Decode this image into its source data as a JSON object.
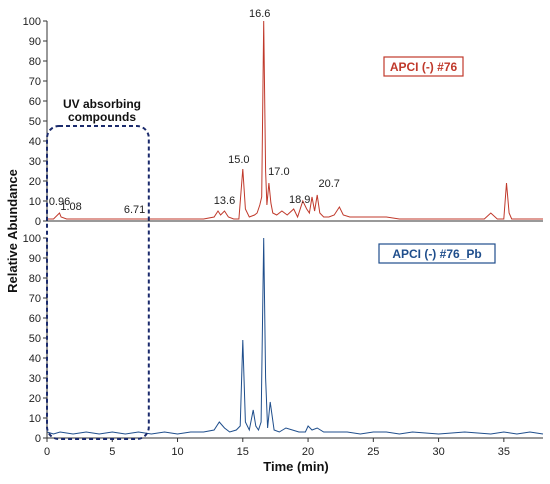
{
  "chart_data": [
    {
      "type": "line",
      "panel": "top",
      "title": "",
      "xlabel": "Time (min)",
      "ylabel": "Relative Abundance",
      "xlim": [
        0,
        38
      ],
      "ylim": [
        0,
        100
      ],
      "x_ticks": [
        "0",
        "5",
        "10",
        "15",
        "20",
        "25",
        "30",
        "35"
      ],
      "y_ticks": [
        "0",
        "10",
        "20",
        "30",
        "40",
        "50",
        "60",
        "70",
        "80",
        "90",
        "100"
      ],
      "legend": "APCI (-) #76",
      "color": "#c0392b",
      "legend_position": "top-right",
      "peaks": [
        {
          "x": 0.96,
          "y": 4,
          "label": "0.96"
        },
        {
          "x": 1.08,
          "y": 2,
          "label": "1.08"
        },
        {
          "x": 6.71,
          "y": 1,
          "label": "6.71"
        },
        {
          "x": 13.6,
          "y": 5,
          "label": "13.6"
        },
        {
          "x": 15.0,
          "y": 26,
          "label": "15.0"
        },
        {
          "x": 16.6,
          "y": 100,
          "label": "16.6"
        },
        {
          "x": 17.0,
          "y": 19,
          "label": "17.0"
        },
        {
          "x": 18.9,
          "y": 6,
          "label": "18.9"
        },
        {
          "x": 20.7,
          "y": 13,
          "label": "20.7"
        }
      ],
      "series": [
        {
          "x": [
            0,
            0.5,
            0.96,
            1.08,
            1.5,
            3,
            5,
            6.71,
            8,
            10,
            12,
            12.8,
            13.1,
            13.3,
            13.6,
            13.9,
            14.3,
            14.7,
            15.0,
            15.2,
            15.5,
            15.9,
            16.1,
            16.3,
            16.45,
            16.6,
            16.75,
            16.85,
            17.0,
            17.15,
            17.3,
            17.6,
            18.0,
            18.4,
            18.9,
            19.2,
            19.6,
            19.9,
            20.1,
            20.3,
            20.5,
            20.7,
            20.9,
            21.2,
            21.6,
            22.0,
            22.4,
            22.7,
            23.2,
            24.0,
            25.0,
            26.0,
            27.0,
            28.0,
            30.0,
            32.0,
            33.5,
            34.0,
            34.5,
            35.0,
            35.2,
            35.4,
            35.6,
            36.0,
            37.0,
            38.0
          ],
          "y": [
            1,
            1,
            4,
            2,
            1,
            1,
            1,
            1,
            1,
            1,
            1,
            2,
            5,
            3,
            5,
            2,
            1,
            1,
            26,
            6,
            2,
            3,
            4,
            8,
            12,
            100,
            25,
            8,
            19,
            9,
            4,
            3,
            5,
            3,
            6,
            2,
            10,
            6,
            4,
            12,
            5,
            13,
            4,
            2,
            2,
            3,
            7,
            3,
            2,
            2,
            2,
            2,
            1,
            1,
            1,
            1,
            1,
            4,
            1,
            1,
            19,
            4,
            1,
            1,
            1,
            1
          ]
        }
      ]
    },
    {
      "type": "line",
      "panel": "bottom",
      "title": "",
      "xlabel": "Time (min)",
      "ylabel": "Relative Abundance",
      "xlim": [
        0,
        38
      ],
      "ylim": [
        0,
        100
      ],
      "x_ticks": [
        "0",
        "5",
        "10",
        "15",
        "20",
        "25",
        "30",
        "35"
      ],
      "y_ticks": [
        "0",
        "10",
        "20",
        "30",
        "40",
        "50",
        "60",
        "70",
        "80",
        "90",
        "100"
      ],
      "legend": "APCI (-) #76_Pb",
      "color": "#1f4e8c",
      "legend_position": "top-right",
      "series": [
        {
          "x": [
            0,
            0.5,
            1.0,
            2.0,
            3.0,
            4.0,
            5.0,
            6.0,
            7.0,
            8.0,
            9.0,
            10.0,
            11.0,
            12.0,
            12.8,
            13.2,
            13.6,
            14.0,
            14.5,
            14.8,
            15.0,
            15.2,
            15.5,
            15.8,
            16.0,
            16.2,
            16.4,
            16.6,
            16.75,
            16.9,
            17.1,
            17.4,
            17.8,
            18.3,
            18.8,
            19.3,
            19.8,
            20.0,
            20.3,
            20.7,
            21.2,
            22.0,
            23.0,
            24.0,
            25.0,
            26.0,
            27.0,
            28.0,
            30.0,
            32.0,
            34.0,
            35.0,
            36.0,
            37.0,
            38.0
          ],
          "y": [
            3,
            2,
            3,
            2,
            3,
            2,
            3,
            2,
            3,
            2,
            3,
            2,
            3,
            3,
            4,
            8,
            5,
            3,
            4,
            6,
            49,
            8,
            4,
            14,
            6,
            4,
            8,
            100,
            30,
            5,
            18,
            4,
            3,
            5,
            4,
            3,
            3,
            6,
            4,
            5,
            3,
            3,
            3,
            2,
            3,
            3,
            2,
            3,
            2,
            3,
            2,
            3,
            2,
            3,
            2
          ]
        }
      ]
    }
  ],
  "annotation": {
    "label_line1": "UV absorbing",
    "label_line2": "compounds",
    "x_start": 0,
    "x_end": 7.8
  }
}
